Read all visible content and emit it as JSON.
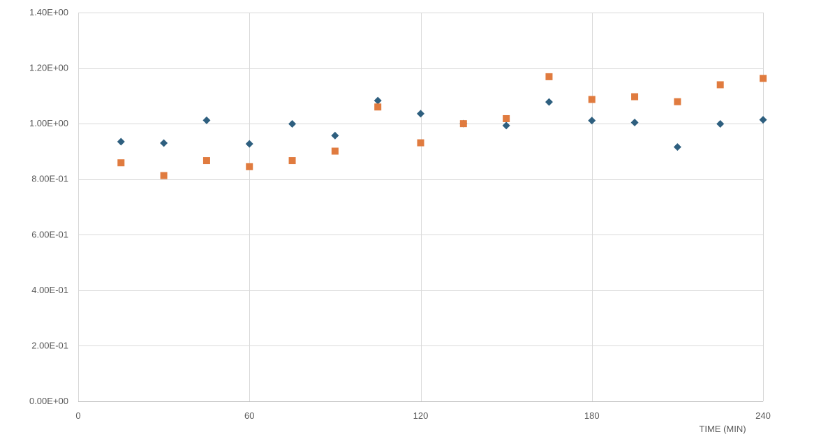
{
  "chart_data": {
    "type": "scatter",
    "title": "",
    "xlabel": "TIME (MIN)",
    "ylabel": "",
    "xlim": [
      0,
      240
    ],
    "ylim": [
      0,
      1.4
    ],
    "x_ticks": [
      0,
      60,
      120,
      180,
      240
    ],
    "x_tick_labels": [
      "0",
      "60",
      "120",
      "180",
      "240"
    ],
    "y_ticks": [
      0,
      0.2,
      0.4,
      0.6,
      0.8,
      1.0,
      1.2,
      1.4
    ],
    "y_tick_labels": [
      "0.00E+00",
      "2.00E-01",
      "4.00E-01",
      "6.00E-01",
      "8.00E-01",
      "1.00E+00",
      "1.20E+00",
      "1.40E+00"
    ],
    "grid": true,
    "legend": "none",
    "series": [
      {
        "marker": "diamond",
        "color": "#2E5F7F",
        "x": [
          15,
          30,
          45,
          60,
          75,
          90,
          105,
          120,
          135,
          150,
          165,
          180,
          195,
          210,
          225,
          240
        ],
        "y": [
          0.935,
          0.93,
          1.012,
          0.927,
          0.999,
          0.957,
          1.083,
          1.036,
          1.0,
          0.993,
          1.078,
          1.011,
          1.004,
          0.916,
          0.999,
          1.014
        ]
      },
      {
        "marker": "square",
        "color": "#E07B3F",
        "x": [
          15,
          30,
          45,
          60,
          75,
          90,
          105,
          120,
          135,
          150,
          165,
          180,
          195,
          210,
          225,
          240
        ],
        "y": [
          0.859,
          0.813,
          0.867,
          0.845,
          0.867,
          0.901,
          1.06,
          0.931,
          1.0,
          1.018,
          1.169,
          1.087,
          1.097,
          1.079,
          1.14,
          1.163
        ]
      }
    ]
  }
}
